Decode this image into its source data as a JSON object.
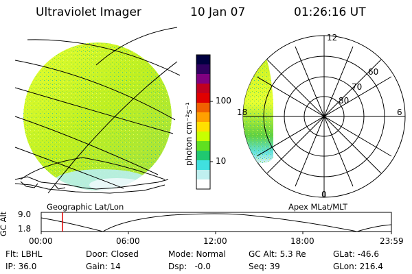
{
  "header": {
    "instrument": "Ultraviolet Imager",
    "date": "10 Jan 07",
    "time": "01:26:16 UT"
  },
  "globe_panel": {
    "label": "Geographic Lat/Lon"
  },
  "polar_panel": {
    "label": "Apex MLat/MLT",
    "mlt_labels": {
      "top": "12",
      "left": "18",
      "right": "6",
      "bottom": "0"
    },
    "mlat_labels": [
      "60",
      "70",
      "80"
    ]
  },
  "colorbar": {
    "unit": "photon cm⁻²s⁻¹",
    "ticks": [
      "100",
      "10"
    ],
    "scale": "log",
    "colors": [
      "#000040",
      "#300060",
      "#800080",
      "#c00020",
      "#e00000",
      "#f06000",
      "#ffa000",
      "#ffe000",
      "#c8ff00",
      "#60e020",
      "#20c870",
      "#40e0e0",
      "#c0f0f0",
      "#ffffff"
    ]
  },
  "altitude_plot": {
    "ylabel": "GC Alt",
    "yticks": [
      "9.0",
      "1.8"
    ],
    "xticks": [
      "00:00",
      "06:00",
      "12:00",
      "18:00",
      "23:59"
    ],
    "current_time_marker": "01:26"
  },
  "status": {
    "filter": "Flt: LBHL",
    "ip": "IP: 36.0",
    "door": "Door: Closed",
    "gain": "Gain: 14",
    "mode": "Mode: Normal",
    "dsp": "Dsp:   -0.0",
    "gc_alt": "GC Alt: 5.3 Re",
    "seq": "Seq: 39",
    "glat": "GLat: -46.6",
    "glon": "GLon: 216.4"
  }
}
